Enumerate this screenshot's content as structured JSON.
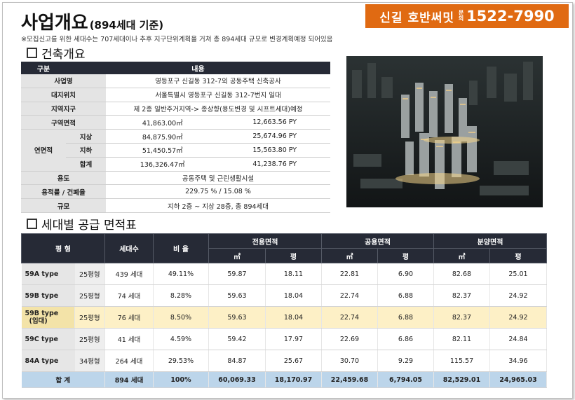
{
  "header": {
    "title": "사업개요",
    "title_sub": "(894세대 기준)",
    "badge": {
      "name": "신길 호반써밋",
      "q1": "문",
      "q2": "의",
      "phone": "1522-7990"
    },
    "note": "※모집신고를 위한 세대수는 707세대이나 추후 지구단위계획을 거쳐 총 894세대 규모로 변경계획예정 되어있음"
  },
  "overview": {
    "section_title": "건축개요",
    "col_label": "구분",
    "col_value": "내용",
    "rows": {
      "name": {
        "label": "사업명",
        "value": "영등포구 신길동 312-7외 공동주택 신축공사"
      },
      "location": {
        "label": "대지위치",
        "value": "서울특별시 영등포구 신길동 312-7번지 일대"
      },
      "zone": {
        "label": "지역지구",
        "value": "제 2종 일반주거지역-> 종상향(용도변경 및 시프트세대)예정"
      },
      "area": {
        "label": "구역면적",
        "m2": "41,863.00㎡",
        "py": "12,663.56 PY"
      },
      "floor_label": "연면적",
      "above": {
        "label": "지상",
        "m2": "84,875.90㎡",
        "py": "25,674.96 PY"
      },
      "below": {
        "label": "지하",
        "m2": "51,450.57㎡",
        "py": "15,563.80 PY"
      },
      "total": {
        "label": "합계",
        "m2": "136,326.47㎡",
        "py": "41,238.76 PY"
      },
      "use": {
        "label": "용도",
        "value": "공동주택 및 근린생활시설"
      },
      "ratio": {
        "label": "용적률 / 건폐율",
        "value": "229.75 % / 15.08 %"
      },
      "scale": {
        "label": "규모",
        "value": "지하 2층 ~ 지상 28층, 총 894세대"
      }
    }
  },
  "supply": {
    "section_title": "세대별 공급 면적표",
    "headers": {
      "type": "평 형",
      "units": "세대수",
      "ratio": "비 율",
      "exclusive": "전용면적",
      "common": "공용면적",
      "sale": "분양면적",
      "m2": "㎡",
      "py": "평"
    },
    "rows": [
      {
        "type": "59A type",
        "pyeong": "25평형",
        "units": "439 세대",
        "ratio": "49.11%",
        "ex_m2": "59.87",
        "ex_py": "18.11",
        "co_m2": "22.81",
        "co_py": "6.90",
        "sa_m2": "82.68",
        "sa_py": "25.01"
      },
      {
        "type": "59B type",
        "pyeong": "25평형",
        "units": "74 세대",
        "ratio": "8.28%",
        "ex_m2": "59.63",
        "ex_py": "18.04",
        "co_m2": "22.74",
        "co_py": "6.88",
        "sa_m2": "82.37",
        "sa_py": "24.92"
      },
      {
        "type": "59B type",
        "type2": "(임대)",
        "pyeong": "25평형",
        "units": "76 세대",
        "ratio": "8.50%",
        "ex_m2": "59.63",
        "ex_py": "18.04",
        "co_m2": "22.74",
        "co_py": "6.88",
        "sa_m2": "82.37",
        "sa_py": "24.92"
      },
      {
        "type": "59C type",
        "pyeong": "25평형",
        "units": "41 세대",
        "ratio": "4.59%",
        "ex_m2": "59.42",
        "ex_py": "17.97",
        "co_m2": "22.69",
        "co_py": "6.86",
        "sa_m2": "82.11",
        "sa_py": "24.84"
      },
      {
        "type": "84A type",
        "pyeong": "34평형",
        "units": "264 세대",
        "ratio": "29.53%",
        "ex_m2": "84.87",
        "ex_py": "25.67",
        "co_m2": "30.70",
        "co_py": "9.29",
        "sa_m2": "115.57",
        "sa_py": "34.96"
      }
    ],
    "total": {
      "label": "합 계",
      "units": "894 세대",
      "ratio": "100%",
      "ex_m2": "60,069.33",
      "ex_py": "18,170.97",
      "co_m2": "22,459.68",
      "co_py": "6,794.05",
      "sa_m2": "82,529.01",
      "sa_py": "24,965.03"
    }
  },
  "colors": {
    "badge": "#e06a12",
    "header": "#262a36",
    "highlight": "#fdf0c6",
    "total": "#bcd5ea"
  }
}
